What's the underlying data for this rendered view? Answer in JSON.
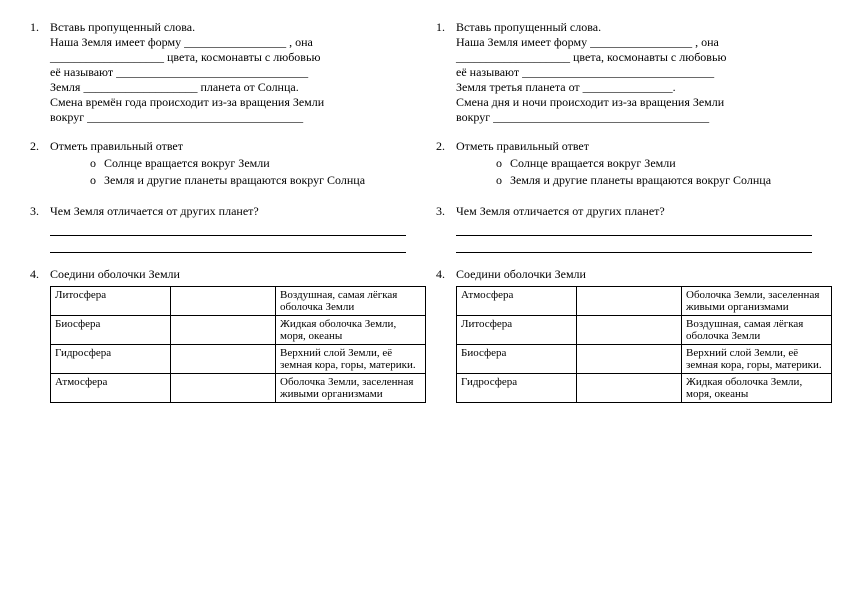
{
  "left": {
    "q1": {
      "num": "1.",
      "title": "Вставь пропущенный слова.",
      "line1a": "Наша Земля имеет форму ",
      "line1b": " , она",
      "line2": "___________________ цвета, космонавты с любовью",
      "line3": "её называют ________________________________",
      "line4": "Земля ___________________ планета от Солнца.",
      "line5": "Смена времён года происходит из-за вращения Земли",
      "line6": "вокруг ____________________________________"
    },
    "q2": {
      "num": "2.",
      "title": "Отметь правильный ответ",
      "opt1": "Солнце вращается вокруг Земли",
      "opt2": "Земля и другие планеты вращаются вокруг Солнца"
    },
    "q3": {
      "num": "3.",
      "title": "Чем Земля отличается от других планет?"
    },
    "q4": {
      "num": "4.",
      "title": "Соедини оболочки Земли",
      "rows": [
        {
          "term": "Литосфера",
          "def": "Воздушная, самая лёгкая оболочка Земли"
        },
        {
          "term": "Биосфера",
          "def": "Жидкая оболочка Земли, моря, океаны"
        },
        {
          "term": "Гидросфера",
          "def": "Верхний слой Земли, её земная кора, горы, материки."
        },
        {
          "term": "Атмосфера",
          "def": "Оболочка Земли, заселенная живыми организмами"
        }
      ]
    }
  },
  "right": {
    "q1": {
      "num": "1.",
      "title": "Вставь пропущенный слова.",
      "line1a": "Наша Земля имеет форму ",
      "line1b": " , она",
      "line2": "___________________ цвета, космонавты с любовью",
      "line3": "её называют ________________________________",
      "line4": "Земля третья планета от _______________.",
      "line5": "Смена дня и ночи происходит из-за вращения Земли",
      "line6": "вокруг ____________________________________"
    },
    "q2": {
      "num": "2.",
      "title": "Отметь правильный ответ",
      "opt1": "Солнце вращается вокруг Земли",
      "opt2": "Земля и другие планеты вращаются вокруг Солнца"
    },
    "q3": {
      "num": "3.",
      "title": "Чем Земля отличается от других планет?"
    },
    "q4": {
      "num": "4.",
      "title": "Соедини оболочки Земли",
      "rows": [
        {
          "term": "Атмосфера",
          "def": "Оболочка Земли, заселенная живыми организмами"
        },
        {
          "term": "Литосфера",
          "def": "Воздушная, самая лёгкая оболочка Земли"
        },
        {
          "term": "Биосфера",
          "def": "Верхний слой Земли, её земная кора, горы, материки."
        },
        {
          "term": "Гидросфера",
          "def": "Жидкая оболочка Земли, моря, океаны"
        }
      ]
    }
  }
}
